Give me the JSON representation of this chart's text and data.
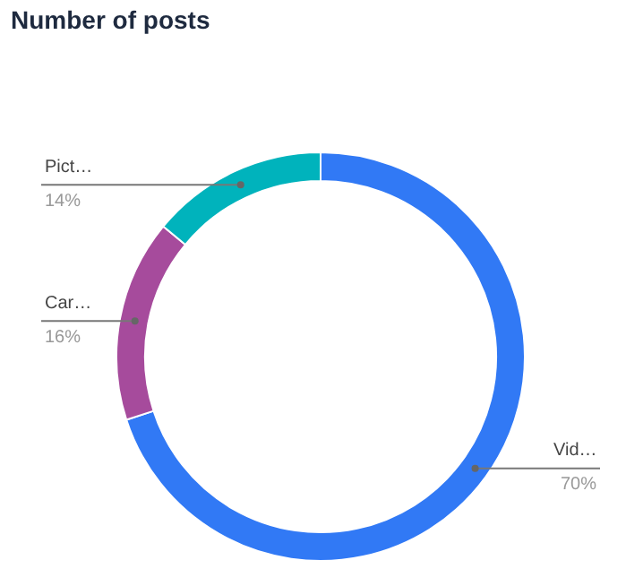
{
  "chart_data": {
    "type": "donut",
    "title": "Number of posts",
    "categories": [
      "Vid…",
      "Car…",
      "Pict…"
    ],
    "values": [
      70,
      16,
      14
    ],
    "value_labels": [
      "70%",
      "16%",
      "14%"
    ],
    "colors": [
      "#3179f5",
      "#a64b9c",
      "#00b3bc"
    ]
  }
}
